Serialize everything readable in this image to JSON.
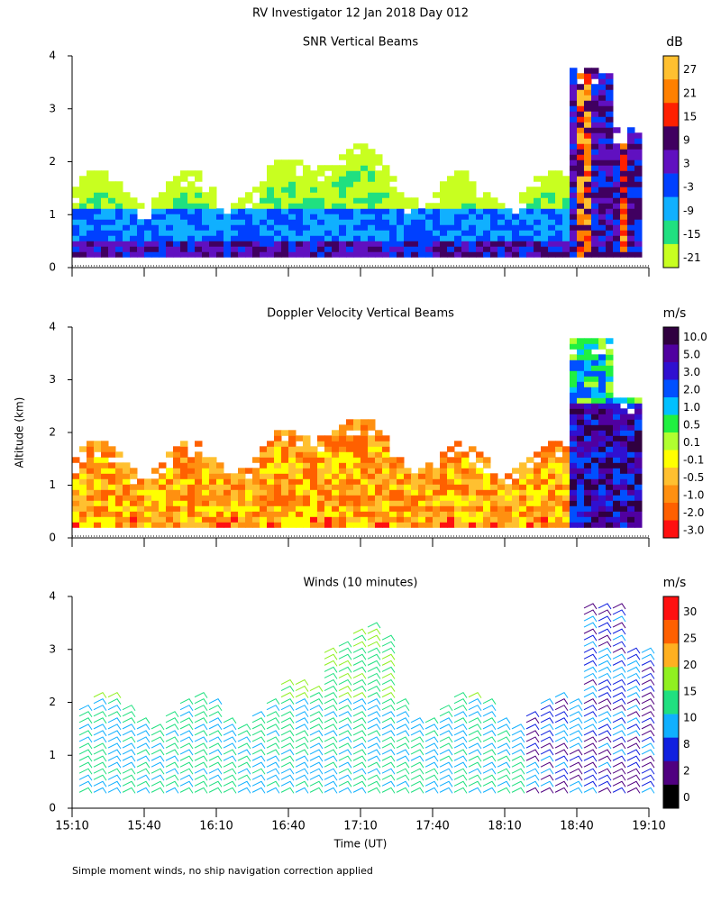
{
  "title": "RV Investigator  12 Jan 2018 Day 012",
  "y_label": "Altitude (km)",
  "x_label": "Time (UT)",
  "footnote": "Simple moment winds, no ship navigation correction applied",
  "chart_data": [
    {
      "type": "heatmap",
      "title": "SNR Vertical Beams",
      "ylim": [
        0,
        4
      ],
      "yticks": [
        0,
        1,
        2,
        3,
        4
      ],
      "colorbar": {
        "title": "dB",
        "labels": [
          27,
          21,
          15,
          9,
          3,
          -3,
          -9,
          -15,
          -21
        ],
        "colors": [
          "#ffc030",
          "#ff8000",
          "#ff2000",
          "#400060",
          "#6010c0",
          "#0040ff",
          "#10b0ff",
          "#20e080",
          "#c8ff20"
        ]
      }
    },
    {
      "type": "heatmap",
      "title": "Doppler Velocity Vertical Beams",
      "ylim": [
        0,
        4
      ],
      "yticks": [
        0,
        1,
        2,
        3,
        4
      ],
      "colorbar": {
        "title": "m/s",
        "labels": [
          {
            "value": 10,
            "label": "10.0"
          },
          {
            "value": 5,
            "label": "5.0"
          },
          {
            "value": 3,
            "label": "3.0"
          },
          {
            "value": 2,
            "label": "2.0"
          },
          {
            "value": 1,
            "label": "1.0"
          },
          0.5,
          0.1,
          -0.1,
          -0.5,
          {
            "value": -1,
            "label": "-1.0"
          },
          {
            "value": -2,
            "label": "-2.0"
          },
          {
            "value": -3,
            "label": "-3.0"
          }
        ],
        "colors": [
          "#300040",
          "#5000a0",
          "#3010d0",
          "#0050ff",
          "#00c0ff",
          "#20f040",
          "#b0ff30",
          "#ffff00",
          "#ffc030",
          "#ff9010",
          "#ff6000",
          "#ff1010"
        ]
      }
    },
    {
      "type": "barbs",
      "title": "Winds (10 minutes)",
      "ylim": [
        0,
        4
      ],
      "yticks": [
        0,
        1,
        2,
        3,
        4
      ],
      "xlim": [
        910,
        1150
      ],
      "xticks": [
        {
          "value": 910,
          "label": "15:10"
        },
        {
          "value": 940,
          "label": "15:40"
        },
        {
          "value": 970,
          "label": "16:10"
        },
        {
          "value": 1000,
          "label": "16:40"
        },
        {
          "value": 1030,
          "label": "17:10"
        },
        {
          "value": 1060,
          "label": "17:40"
        },
        {
          "value": 1090,
          "label": "18:10"
        },
        {
          "value": 1120,
          "label": "18:40"
        },
        {
          "value": 1150,
          "label": "19:10"
        }
      ],
      "colorbar": {
        "title": "m/s",
        "labels": [
          30,
          25,
          20,
          15,
          10,
          8,
          2,
          0
        ],
        "colors": [
          "#ff1010",
          "#ff6000",
          "#ffb020",
          "#90f020",
          "#20e080",
          "#10b0ff",
          "#1020e0",
          "#500080",
          "#000000"
        ]
      }
    }
  ]
}
